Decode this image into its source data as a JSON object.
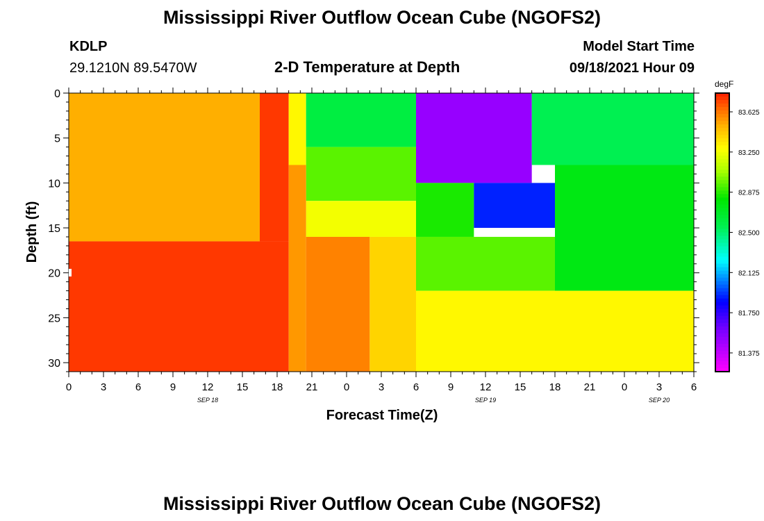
{
  "header": {
    "title_top": "Mississippi River Outflow Ocean Cube (NGOFS2)",
    "title_bottom": "Mississippi River Outflow Ocean Cube (NGOFS2)",
    "station": "KDLP",
    "coords": "29.1210N  89.5470W",
    "plot_title": "2-D Temperature at Depth",
    "model_start_label": "Model Start Time",
    "model_start_value": "09/18/2021 Hour 09"
  },
  "chart_data": {
    "type": "heatmap",
    "xlabel": "Forecast Time(Z)",
    "ylabel": "Depth (ft)",
    "x_ticks": [
      {
        "hour": 0,
        "label": "0"
      },
      {
        "hour": 3,
        "label": "3"
      },
      {
        "hour": 6,
        "label": "6"
      },
      {
        "hour": 9,
        "label": "9"
      },
      {
        "hour": 12,
        "label": "12"
      },
      {
        "hour": 15,
        "label": "15"
      },
      {
        "hour": 18,
        "label": "18"
      },
      {
        "hour": 21,
        "label": "21"
      },
      {
        "hour": 24,
        "label": "0"
      },
      {
        "hour": 27,
        "label": "3"
      },
      {
        "hour": 30,
        "label": "6"
      },
      {
        "hour": 33,
        "label": "9"
      },
      {
        "hour": 36,
        "label": "12"
      },
      {
        "hour": 39,
        "label": "15"
      },
      {
        "hour": 42,
        "label": "18"
      },
      {
        "hour": 45,
        "label": "21"
      },
      {
        "hour": 48,
        "label": "0"
      },
      {
        "hour": 51,
        "label": "3"
      },
      {
        "hour": 54,
        "label": "6"
      }
    ],
    "date_labels": [
      {
        "hour": 12,
        "label": "SEP 18"
      },
      {
        "hour": 36,
        "label": "SEP 19"
      },
      {
        "hour": 51,
        "label": "SEP 20"
      }
    ],
    "xlim": [
      0,
      54
    ],
    "y_ticks": [
      0,
      5,
      10,
      15,
      20,
      25,
      30
    ],
    "ylim": [
      0,
      31
    ],
    "colorbar": {
      "unit": "degF",
      "range": [
        81.2,
        83.8
      ],
      "ticks": [
        "83.625",
        "83.250",
        "82.875",
        "82.500",
        "82.125",
        "81.750",
        "81.375"
      ]
    },
    "regions": [
      {
        "x0": 0,
        "x1": 16.5,
        "d0": 0,
        "d1": 16.5,
        "temp": 83.5
      },
      {
        "x0": 16.5,
        "x1": 19,
        "d0": 0,
        "d1": 16.5,
        "temp": 83.75
      },
      {
        "x0": 0,
        "x1": 19,
        "d0": 16.5,
        "d1": 31,
        "temp": 83.75
      },
      {
        "x0": 19,
        "x1": 20.5,
        "d0": 0,
        "d1": 8,
        "temp": 83.3
      },
      {
        "x0": 20.5,
        "x1": 30,
        "d0": 0,
        "d1": 6,
        "temp": 82.6
      },
      {
        "x0": 30,
        "x1": 40,
        "d0": 0,
        "d1": 10,
        "temp": 81.5
      },
      {
        "x0": 40,
        "x1": 54,
        "d0": 0,
        "d1": 8,
        "temp": 82.55
      },
      {
        "x0": 20.5,
        "x1": 30,
        "d0": 6,
        "d1": 12,
        "temp": 82.95
      },
      {
        "x0": 20.5,
        "x1": 30,
        "d0": 12,
        "d1": 16,
        "temp": 83.25
      },
      {
        "x0": 19,
        "x1": 20.5,
        "d0": 8,
        "d1": 31,
        "temp": 83.55
      },
      {
        "x0": 20.5,
        "x1": 26,
        "d0": 16,
        "d1": 31,
        "temp": 83.6
      },
      {
        "x0": 26,
        "x1": 30,
        "d0": 16,
        "d1": 31,
        "temp": 83.4
      },
      {
        "x0": 30,
        "x1": 35,
        "d0": 10,
        "d1": 16,
        "temp": 82.85
      },
      {
        "x0": 35,
        "x1": 42,
        "d0": 10,
        "d1": 15,
        "temp": 81.9
      },
      {
        "x0": 30,
        "x1": 42,
        "d0": 16,
        "d1": 22,
        "temp": 82.95
      },
      {
        "x0": 42,
        "x1": 54,
        "d0": 8,
        "d1": 22,
        "temp": 82.75
      },
      {
        "x0": 30,
        "x1": 54,
        "d0": 22,
        "d1": 31,
        "temp": 83.3
      }
    ]
  }
}
